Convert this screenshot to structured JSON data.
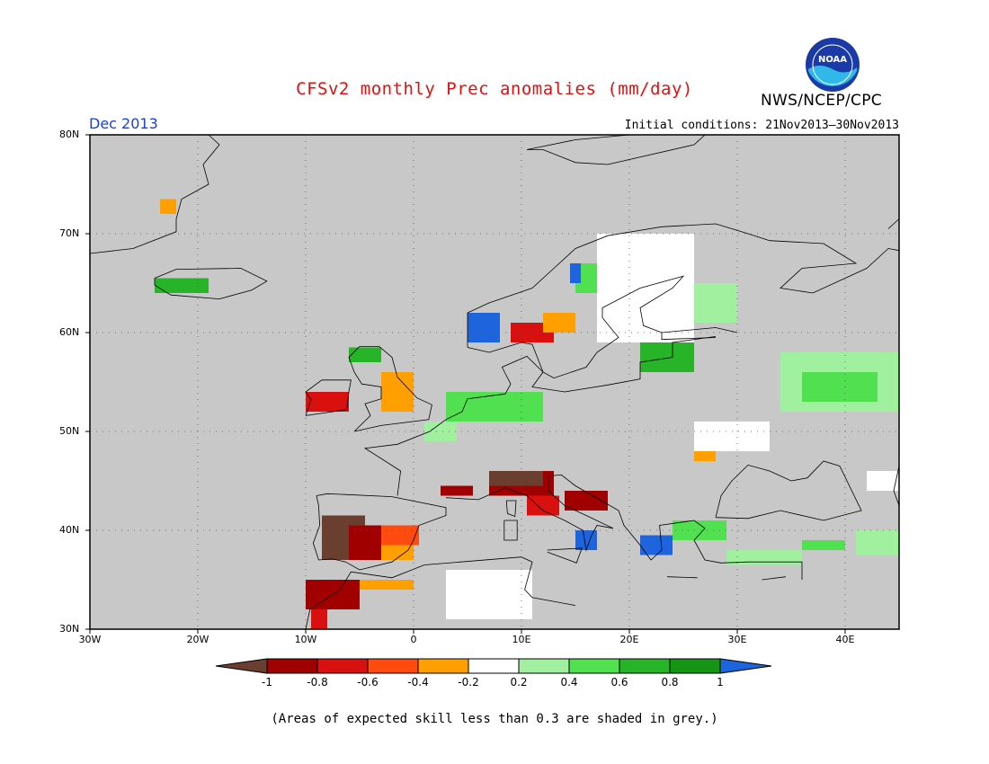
{
  "title": "CFSv2 monthly Prec anomalies (mm/day)",
  "agency": "NWS/NCEP/CPC",
  "logo_text": "NOAA",
  "valid_month": "Dec 2013",
  "initial_conditions": "Initial conditions: 21Nov2013–30Nov2013",
  "footnote": "(Areas of expected skill less than 0.3 are shaded in grey.)",
  "colors": {
    "background_grey": "#c8c8c8",
    "title_red": "#e01010",
    "month_blue": "#1a40d0",
    "lt_m1": "#6b3f2f",
    "m1_m08": "#a00000",
    "m08_m06": "#d81010",
    "m06_m04": "#ff4a10",
    "m04_m02": "#ffa000",
    "m02_02": "#ffffff",
    "p02_04": "#a0f0a0",
    "p04_06": "#50e050",
    "p06_08": "#28b428",
    "p08_1": "#149614",
    "gt_1": "#1e64dc"
  },
  "chart_data": {
    "type": "heatmap",
    "lat_range": [
      30,
      80
    ],
    "lon_range": [
      -30,
      45
    ],
    "lat_ticks": [
      "30N",
      "40N",
      "50N",
      "60N",
      "70N",
      "80N"
    ],
    "lon_ticks": [
      "30W",
      "20W",
      "10W",
      "0",
      "10E",
      "20E",
      "30E",
      "40E"
    ],
    "colorbar": {
      "labels": [
        "-1",
        "-0.8",
        "-0.6",
        "-0.4",
        "-0.2",
        "0.2",
        "0.4",
        "0.6",
        "0.8",
        "1"
      ],
      "bins": [
        "lt_m1",
        "m1_m08",
        "m08_m06",
        "m06_m04",
        "m04_m02",
        "m02_02",
        "p02_04",
        "p04_06",
        "p06_08",
        "p08_1",
        "gt_1"
      ]
    },
    "regions": [
      {
        "name": "Iberia west",
        "cat": "lt_m1",
        "lon": [
          -8.5,
          -4.5
        ],
        "lat": [
          37,
          41.5
        ]
      },
      {
        "name": "Iberia central",
        "cat": "m1_m08",
        "lon": [
          -6,
          -2.5
        ],
        "lat": [
          37,
          40.5
        ]
      },
      {
        "name": "Iberia east",
        "cat": "m06_m04",
        "lon": [
          -3,
          0.5
        ],
        "lat": [
          38.5,
          40.5
        ]
      },
      {
        "name": "Iberia southeast",
        "cat": "m04_m02",
        "lon": [
          -3,
          0
        ],
        "lat": [
          37,
          38.5
        ]
      },
      {
        "name": "Morocco north",
        "cat": "m1_m08",
        "lon": [
          -10,
          -5
        ],
        "lat": [
          32,
          35
        ]
      },
      {
        "name": "Morocco coast",
        "cat": "m08_m06",
        "lon": [
          -9.5,
          -8
        ],
        "lat": [
          30,
          32
        ]
      },
      {
        "name": "Morocco east",
        "cat": "m04_m02",
        "lon": [
          -5,
          0
        ],
        "lat": [
          34,
          35
        ]
      },
      {
        "name": "Gulf of Lion",
        "cat": "m1_m08",
        "lon": [
          2.5,
          5.5
        ],
        "lat": [
          43.5,
          44.5
        ]
      },
      {
        "name": "NW Italy",
        "cat": "m1_m08",
        "lon": [
          7,
          13
        ],
        "lat": [
          43.5,
          46
        ]
      },
      {
        "name": "Alps",
        "cat": "lt_m1",
        "lon": [
          7,
          12
        ],
        "lat": [
          44.5,
          46
        ]
      },
      {
        "name": "Central Italy",
        "cat": "m08_m06",
        "lon": [
          10.5,
          13.5
        ],
        "lat": [
          41.5,
          43.5
        ]
      },
      {
        "name": "Adriatic",
        "cat": "m1_m08",
        "lon": [
          14,
          18
        ],
        "lat": [
          42,
          44
        ]
      },
      {
        "name": "S Italy",
        "cat": "gt_1",
        "lon": [
          15,
          17
        ],
        "lat": [
          38,
          40
        ]
      },
      {
        "name": "Greece",
        "cat": "gt_1",
        "lon": [
          21,
          24
        ],
        "lat": [
          37.5,
          39.5
        ]
      },
      {
        "name": "Aegean",
        "cat": "p04_06",
        "lon": [
          24,
          29
        ],
        "lat": [
          39,
          41
        ]
      },
      {
        "name": "Turkey south",
        "cat": "p02_04",
        "lon": [
          29,
          36
        ],
        "lat": [
          36.5,
          38
        ]
      },
      {
        "name": "Turkey east",
        "cat": "p04_06",
        "lon": [
          36,
          40
        ],
        "lat": [
          38,
          39
        ]
      },
      {
        "name": "Caucasus",
        "cat": "p02_04",
        "lon": [
          41,
          45
        ],
        "lat": [
          37.5,
          40
        ]
      },
      {
        "name": "N Sea coast",
        "cat": "p04_06",
        "lon": [
          3,
          12
        ],
        "lat": [
          51,
          54
        ]
      },
      {
        "name": "Netherlands",
        "cat": "p02_04",
        "lon": [
          1,
          4
        ],
        "lat": [
          49,
          51
        ]
      },
      {
        "name": "SW Norway",
        "cat": "gt_1",
        "lon": [
          5,
          8
        ],
        "lat": [
          59,
          62
        ]
      },
      {
        "name": "S Norway",
        "cat": "m08_m06",
        "lon": [
          9,
          13
        ],
        "lat": [
          59,
          61
        ]
      },
      {
        "name": "S Sweden",
        "cat": "m04_m02",
        "lon": [
          12,
          15
        ],
        "lat": [
          60,
          62
        ]
      },
      {
        "name": "N Norway",
        "cat": "p04_06",
        "lon": [
          15,
          19
        ],
        "lat": [
          64,
          67
        ]
      },
      {
        "name": "Norway coast",
        "cat": "gt_1",
        "lon": [
          14.5,
          15.5
        ],
        "lat": [
          65,
          67
        ]
      },
      {
        "name": "Finland",
        "cat": "p02_04",
        "lon": [
          23,
          30
        ],
        "lat": [
          61,
          65
        ]
      },
      {
        "name": "Baltic",
        "cat": "p06_08",
        "lon": [
          21,
          26
        ],
        "lat": [
          56,
          59
        ]
      },
      {
        "name": "Russia west",
        "cat": "p02_04",
        "lon": [
          34,
          45
        ],
        "lat": [
          52,
          58
        ]
      },
      {
        "name": "Russia central",
        "cat": "p04_06",
        "lon": [
          36,
          43
        ],
        "lat": [
          53,
          56
        ]
      },
      {
        "name": "Scandinavia interior",
        "cat": "m02_02",
        "lon": [
          17,
          26
        ],
        "lat": [
          59,
          70
        ]
      },
      {
        "name": "Ireland",
        "cat": "m08_m06",
        "lon": [
          -10,
          -6
        ],
        "lat": [
          52,
          54
        ]
      },
      {
        "name": "Scotland",
        "cat": "p06_08",
        "lon": [
          -6,
          -3
        ],
        "lat": [
          57,
          58.5
        ]
      },
      {
        "name": "England",
        "cat": "m04_m02",
        "lon": [
          -3,
          0
        ],
        "lat": [
          52,
          56
        ]
      },
      {
        "name": "Iceland",
        "cat": "p06_08",
        "lon": [
          -24,
          -19
        ],
        "lat": [
          64,
          65.5
        ]
      },
      {
        "name": "Greenland",
        "cat": "m04_m02",
        "lon": [
          -23.5,
          -22
        ],
        "lat": [
          72,
          73.5
        ]
      },
      {
        "name": "Ukraine",
        "cat": "m02_02",
        "lon": [
          26,
          33
        ],
        "lat": [
          48,
          51
        ]
      },
      {
        "name": "Ukraine orange",
        "cat": "m04_m02",
        "lon": [
          26,
          28
        ],
        "lat": [
          47,
          48
        ]
      },
      {
        "name": "Tunisia",
        "cat": "m02_02",
        "lon": [
          3,
          11
        ],
        "lat": [
          31,
          36
        ]
      },
      {
        "name": "Caspian coast",
        "cat": "m02_02",
        "lon": [
          42,
          45
        ],
        "lat": [
          44,
          46
        ]
      }
    ]
  }
}
